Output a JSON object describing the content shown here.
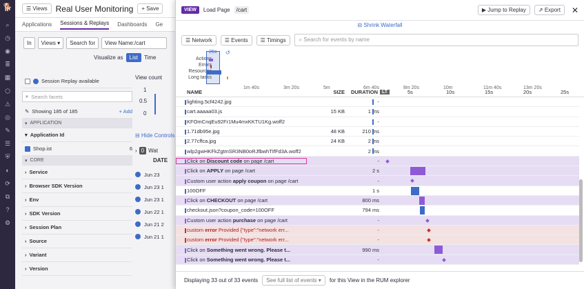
{
  "bg": {
    "views_label": "Views",
    "title": "Real User Monitoring",
    "save": "+ Save",
    "tabs": [
      "Applications",
      "Sessions & Replays",
      "Dashboards",
      "Ge"
    ],
    "in": "In",
    "views_dd": "Views",
    "search_for": "Search for",
    "view_name": "View Name:/cart",
    "visualize_as": "Visualize as",
    "list": "List",
    "time": "Time",
    "view_count": "View count",
    "axis": [
      "1",
      "0.5",
      "0"
    ],
    "hide_controls": "Hide Controls",
    "wa_count": "0",
    "wa": "Wat",
    "date_col": "DATE",
    "dates": [
      "Jun 23",
      "Jun 23 1",
      "Jun 23 1",
      "Jun 22 1",
      "Jun 21 2",
      "Jun 21 1"
    ]
  },
  "facets": {
    "session_replay": "Session Replay available",
    "search": "Search facets",
    "showing": "Showing 185 of 185",
    "add": "Add",
    "application": "APPLICATION",
    "app_id": "Application Id",
    "shop": "Shop.ist",
    "shop_count": "6",
    "core": "CORE",
    "items": [
      "Service",
      "Browser SDK Version",
      "Env",
      "SDK Version",
      "Session Plan",
      "Source",
      "Variant",
      "Version"
    ]
  },
  "panel": {
    "badge": "VIEW",
    "load": "Load Page",
    "path": "/cart",
    "jump": "Jump to Replay",
    "export": "Export",
    "shrink": "Shrink Waterfall",
    "filters": [
      "Network",
      "Events",
      "Timings"
    ],
    "search_placeholder": "Search for events by name",
    "mini_labels": [
      "Actions",
      "Errors",
      "Resources",
      "Long tasks"
    ],
    "mini_badge": "26s",
    "mini_ticks": [
      "1m 40s",
      "3m 20s",
      "5m",
      "6m 40s",
      "8m 20s",
      "10m",
      "11m 40s",
      "13m 20s"
    ],
    "cols": {
      "name": "NAME",
      "size": "SIZE",
      "duration": "DURATION",
      "lt": "LT"
    },
    "wf_ticks": [
      "5s",
      "10s",
      "15s",
      "20s",
      "25s"
    ],
    "rows": [
      {
        "pre": "",
        "bold": "",
        "text": "lighting.5cf4242.jpg",
        "size": "",
        "dur": "-",
        "kind": "res"
      },
      {
        "pre": "",
        "bold": "",
        "text": "cart.aaaaa03.js",
        "size": "15 KB",
        "dur": "1 ms",
        "kind": "res"
      },
      {
        "pre": "",
        "bold": "",
        "text": "KFOmCnqEu92Fr1Mu4mxKKTU1Kg.woff2",
        "size": "",
        "dur": "-",
        "kind": "res"
      },
      {
        "pre": "",
        "bold": "",
        "text": "1.71db95e.jpg",
        "size": "48 KB",
        "dur": "210 ms",
        "kind": "res"
      },
      {
        "pre": "",
        "bold": "",
        "text": "2.77cffca.jpg",
        "size": "24 KB",
        "dur": "2 ms",
        "kind": "res"
      },
      {
        "pre": "",
        "bold": "",
        "text": "wlp2gwHKFkZgtmSR3NB0oRJfbwhTIfFd3A.woff2",
        "size": "",
        "dur": "2 ms",
        "kind": "res"
      },
      {
        "pre": "Click on ",
        "bold": "Discount code",
        "text": " on page /cart",
        "size": "",
        "dur": "-",
        "kind": "act",
        "sel": true
      },
      {
        "pre": "Click on ",
        "bold": "APPLY",
        "text": " on page /cart",
        "size": "",
        "dur": "2 s",
        "kind": "act"
      },
      {
        "pre": "Custom user action ",
        "bold": "apply coupon",
        "text": " on page /cart",
        "size": "",
        "dur": "-",
        "kind": "act"
      },
      {
        "pre": "",
        "bold": "",
        "text": "100OFF",
        "size": "",
        "dur": "1 s",
        "kind": "res"
      },
      {
        "pre": "Click on ",
        "bold": "CHECKOUT",
        "text": " on page /cart",
        "size": "",
        "dur": "800 ms",
        "kind": "act"
      },
      {
        "pre": "",
        "bold": "",
        "text": "checkout.json?coupon_code=100OFF",
        "size": "",
        "dur": "794 ms",
        "kind": "res"
      },
      {
        "pre": "Custom user action ",
        "bold": "purchase",
        "text": " on page /cart",
        "size": "",
        "dur": "-",
        "kind": "act"
      },
      {
        "pre": "custom ",
        "bold": "error",
        "text": " Provided {\"type\":\"network err...",
        "size": "",
        "dur": "-",
        "kind": "err"
      },
      {
        "pre": "custom ",
        "bold": "error",
        "text": " Provided {\"type\":\"network err...",
        "size": "",
        "dur": "-",
        "kind": "err"
      },
      {
        "pre": "Click on ",
        "bold": "Something went wrong. Please t...",
        "text": "",
        "size": "",
        "dur": "990 ms",
        "kind": "act"
      },
      {
        "pre": "Click on ",
        "bold": "Something went wrong. Please t...",
        "text": "",
        "size": "",
        "dur": "-",
        "kind": "act"
      }
    ],
    "footer": {
      "displaying": "Displaying 33 out of 33 events",
      "see": "See full list of events",
      "suffix": "for this View in the RUM explorer"
    }
  },
  "colors": {
    "res": "#3d6bc7",
    "act": "#8e5bd6",
    "err": "#c53030",
    "accent": "#632ca6"
  }
}
